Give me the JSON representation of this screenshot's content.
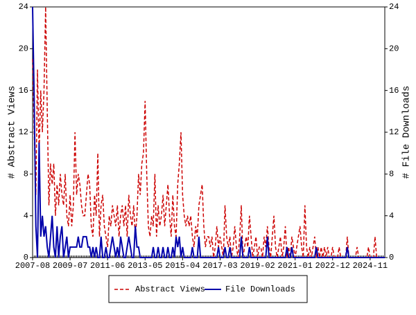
{
  "chart_data": {
    "type": "line",
    "y_label": "# Abstract Views",
    "y2_label": "# File Downloads",
    "x": [
      "2007-08",
      "2007-09",
      "2007-10",
      "2007-11",
      "2007-12",
      "2008-01",
      "2008-02",
      "2008-03",
      "2008-04",
      "2008-05",
      "2008-06",
      "2008-07",
      "2008-08",
      "2008-09",
      "2008-10",
      "2008-11",
      "2008-12",
      "2009-01",
      "2009-02",
      "2009-03",
      "2009-04",
      "2009-05",
      "2009-06",
      "2009-07",
      "2009-08",
      "2009-09",
      "2009-10",
      "2009-11",
      "2009-12",
      "2010-01",
      "2010-02",
      "2010-03",
      "2010-04",
      "2010-05",
      "2010-06",
      "2010-07",
      "2010-08",
      "2010-09",
      "2010-10",
      "2010-11",
      "2010-12",
      "2011-01",
      "2011-02",
      "2011-03",
      "2011-04",
      "2011-05",
      "2011-06",
      "2011-07",
      "2011-08",
      "2011-09",
      "2011-10",
      "2011-11",
      "2011-12",
      "2012-01",
      "2012-02",
      "2012-03",
      "2012-04",
      "2012-05",
      "2012-06",
      "2012-07",
      "2012-08",
      "2012-09",
      "2012-10",
      "2012-11",
      "2012-12",
      "2013-01",
      "2013-02",
      "2013-03",
      "2013-04",
      "2013-05",
      "2013-06",
      "2013-07",
      "2013-08",
      "2013-09",
      "2013-10",
      "2013-11",
      "2013-12",
      "2014-01",
      "2014-02",
      "2014-03",
      "2014-04",
      "2014-05",
      "2014-06",
      "2014-07",
      "2014-08",
      "2014-09",
      "2014-10",
      "2014-11",
      "2014-12",
      "2015-01",
      "2015-02",
      "2015-03",
      "2015-04",
      "2015-05",
      "2015-06",
      "2015-07",
      "2015-08",
      "2015-09",
      "2015-10",
      "2015-11",
      "2015-12",
      "2016-01",
      "2016-02",
      "2016-03",
      "2016-04",
      "2016-05",
      "2016-06",
      "2016-07",
      "2016-08",
      "2016-09",
      "2016-10",
      "2016-11",
      "2016-12",
      "2017-01",
      "2017-02",
      "2017-03",
      "2017-04",
      "2017-05",
      "2017-06",
      "2017-07",
      "2017-08",
      "2017-09",
      "2017-10",
      "2017-11",
      "2017-12",
      "2018-01",
      "2018-02",
      "2018-03",
      "2018-04",
      "2018-05",
      "2018-06",
      "2018-07",
      "2018-08",
      "2018-09",
      "2018-10",
      "2018-11",
      "2018-12",
      "2019-01",
      "2019-02",
      "2019-03",
      "2019-04",
      "2019-05",
      "2019-06",
      "2019-07",
      "2019-08",
      "2019-09",
      "2019-10",
      "2019-11",
      "2019-12",
      "2020-01",
      "2020-02",
      "2020-03",
      "2020-04",
      "2020-05",
      "2020-06",
      "2020-07",
      "2020-08",
      "2020-09",
      "2020-10",
      "2020-11",
      "2020-12",
      "2021-01",
      "2021-02",
      "2021-03",
      "2021-04",
      "2021-05",
      "2021-06",
      "2021-07",
      "2021-08",
      "2021-09",
      "2021-10",
      "2021-11",
      "2021-12",
      "2022-01",
      "2022-02",
      "2022-03",
      "2022-04",
      "2022-05",
      "2022-06",
      "2022-07",
      "2022-08",
      "2022-09",
      "2022-10",
      "2022-11",
      "2022-12",
      "2023-01",
      "2023-02",
      "2023-03",
      "2023-04",
      "2023-05",
      "2023-06",
      "2023-07",
      "2023-08",
      "2023-09",
      "2023-10",
      "2023-11",
      "2023-12",
      "2024-01",
      "2024-02",
      "2024-03",
      "2024-04",
      "2024-05",
      "2024-06",
      "2024-07",
      "2024-08",
      "2024-09",
      "2024-10",
      "2024-11",
      "2024-12",
      "2025-01",
      "2025-02",
      "2025-03",
      "2025-04",
      "2025-05",
      "2025-06",
      "2025-07",
      "2025-08"
    ],
    "xticks": [
      "2007-08",
      "2009-07",
      "2011-06",
      "2013-05",
      "2015-04",
      "2017-03",
      "2019-02",
      "2021-01",
      "2022-12",
      "2024-11"
    ],
    "ylim": [
      0,
      24
    ],
    "yticks": [
      0,
      4,
      8,
      12,
      16,
      20,
      24
    ],
    "y2lim": [
      0,
      24
    ],
    "y2ticks": [
      0,
      4,
      8,
      12,
      16,
      20,
      24
    ],
    "legend": "bottom",
    "series": [
      {
        "name": "Abstract Views",
        "color": "#cc0000",
        "dashed": true,
        "values": [
          19,
          12,
          6,
          18,
          10,
          16,
          12,
          16,
          24,
          14,
          5,
          9,
          7,
          9,
          4,
          7,
          5,
          8,
          6,
          5,
          8,
          4,
          3,
          6,
          3,
          5,
          12,
          6,
          8,
          7,
          5,
          4,
          4,
          6,
          8,
          7,
          3,
          2,
          6,
          4,
          10,
          2,
          5,
          6,
          3,
          2,
          1,
          4,
          3,
          5,
          4,
          3,
          5,
          2,
          4,
          5,
          3,
          5,
          2,
          6,
          4,
          3,
          5,
          2,
          4,
          8,
          6,
          9,
          10,
          15,
          8,
          3,
          2,
          4,
          3,
          8,
          2,
          5,
          3,
          4,
          6,
          3,
          5,
          7,
          4,
          2,
          6,
          3,
          2,
          7,
          9,
          12,
          6,
          4,
          3,
          4,
          3,
          4,
          2,
          1,
          3,
          2,
          5,
          6,
          7,
          3,
          1,
          2,
          2,
          1,
          2,
          0,
          1,
          3,
          1,
          2,
          1,
          0,
          5,
          2,
          1,
          2,
          0,
          1,
          3,
          1,
          0,
          2,
          5,
          0,
          1,
          2,
          1,
          4,
          2,
          0,
          1,
          2,
          0,
          1,
          1,
          0,
          2,
          1,
          3,
          1,
          0,
          2,
          4,
          1,
          0,
          1,
          2,
          0,
          1,
          3,
          0,
          1,
          0,
          2,
          1,
          0,
          1,
          2,
          3,
          1,
          0,
          5,
          1,
          0,
          1,
          0,
          1,
          2,
          0,
          1,
          0,
          1,
          0,
          1,
          0,
          1,
          0,
          0,
          1,
          0,
          0,
          0,
          1,
          0,
          0,
          0,
          0,
          2,
          0,
          0,
          0,
          0,
          0,
          1,
          0,
          0,
          0,
          0,
          0,
          0,
          1,
          0,
          0,
          0,
          2,
          0,
          0,
          0,
          0,
          0,
          0
        ]
      },
      {
        "name": "File Downloads",
        "color": "#0000aa",
        "axis": "y2",
        "values": [
          24,
          15,
          3,
          0,
          11,
          2,
          4,
          2,
          3,
          1,
          0,
          2,
          4,
          1,
          0,
          3,
          0,
          2,
          3,
          0,
          1,
          2,
          0,
          1,
          1,
          1,
          1,
          1,
          2,
          1,
          1,
          2,
          2,
          2,
          1,
          1,
          0,
          1,
          0,
          1,
          0,
          0,
          2,
          0,
          0,
          1,
          0,
          0,
          1,
          2,
          1,
          0,
          1,
          0,
          2,
          1,
          0,
          0,
          1,
          2,
          1,
          0,
          0,
          3,
          1,
          1,
          0,
          0,
          0,
          0,
          0,
          0,
          0,
          0,
          1,
          0,
          0,
          1,
          0,
          0,
          1,
          0,
          0,
          1,
          0,
          0,
          1,
          0,
          2,
          1,
          2,
          0,
          1,
          0,
          0,
          0,
          0,
          0,
          1,
          0,
          0,
          0,
          2,
          0,
          0,
          0,
          0,
          0,
          0,
          0,
          0,
          0,
          0,
          0,
          1,
          0,
          0,
          0,
          1,
          0,
          0,
          1,
          0,
          0,
          0,
          0,
          0,
          0,
          2,
          0,
          0,
          0,
          0,
          1,
          0,
          0,
          0,
          0,
          0,
          0,
          0,
          0,
          0,
          0,
          2,
          0,
          0,
          0,
          0,
          0,
          0,
          0,
          0,
          0,
          0,
          0,
          1,
          0,
          0,
          1,
          0,
          0,
          0,
          0,
          0,
          0,
          0,
          0,
          0,
          0,
          0,
          0,
          0,
          0,
          1,
          0,
          0,
          0,
          0,
          0,
          0,
          0,
          0,
          0,
          0,
          0,
          0,
          0,
          0,
          0,
          0,
          0,
          0,
          1,
          0,
          0,
          0,
          0,
          0,
          0,
          0,
          0,
          0,
          0,
          0,
          0,
          0,
          0,
          0,
          0,
          0,
          0,
          0,
          0,
          0,
          0,
          0
        ]
      }
    ]
  }
}
